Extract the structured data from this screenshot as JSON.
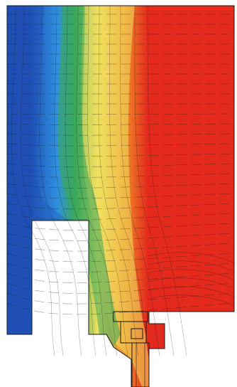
{
  "figure": {
    "kind": "thermal simulation cross-section",
    "colors": {
      "cold": "#1f4fb4",
      "cool": "#2f8fe0",
      "mild": "#3aa85a",
      "warm": "#f0e060",
      "hot_orange": "#f08a28",
      "hot": "#e32a1e",
      "isotherm_line": "#1a1a1a",
      "background": "#ffffff"
    },
    "color_scale": [
      "cold",
      "cool",
      "mild",
      "warm",
      "hot_orange",
      "hot"
    ]
  }
}
